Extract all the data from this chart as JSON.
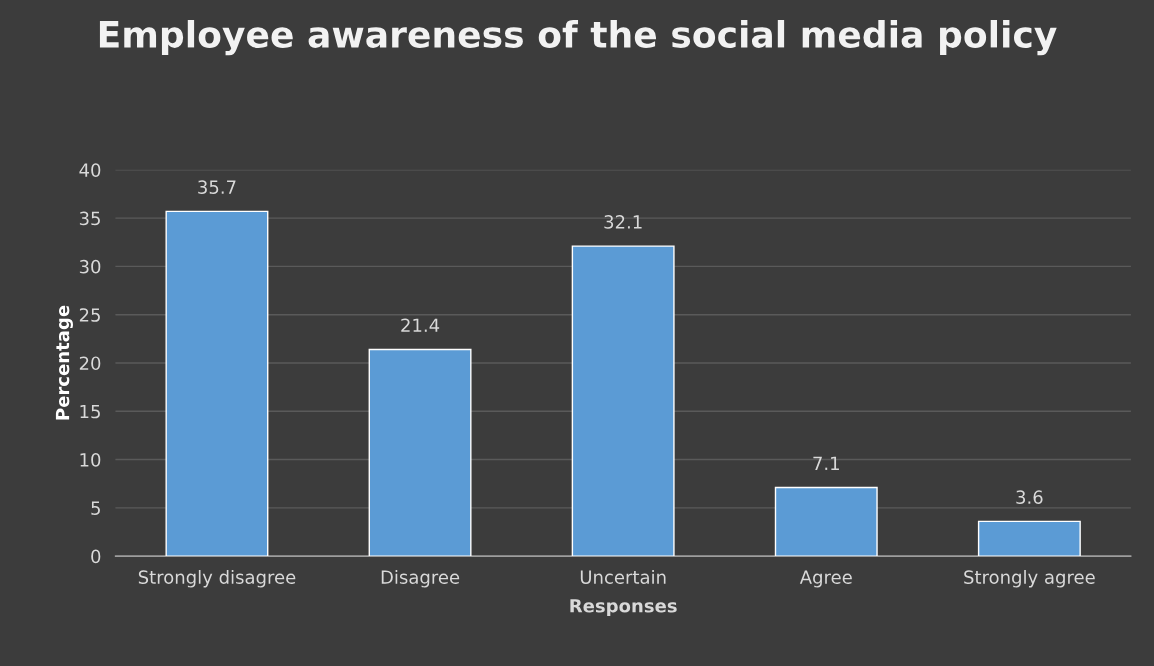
{
  "chart_data": {
    "type": "bar",
    "title": "Employee awareness of the social media policy",
    "xlabel": "Responses",
    "ylabel": "Percentage",
    "categories": [
      "Strongly disagree",
      "Disagree",
      "Uncertain",
      "Agree",
      "Strongly agree"
    ],
    "values": [
      35.7,
      21.4,
      32.1,
      7.1,
      3.6
    ],
    "color": "#5b9bd5",
    "ylim": [
      0,
      40
    ],
    "yticks": [
      0,
      5,
      10,
      15,
      20,
      25,
      30,
      35,
      40
    ],
    "grid": "y",
    "data_labels": true
  }
}
